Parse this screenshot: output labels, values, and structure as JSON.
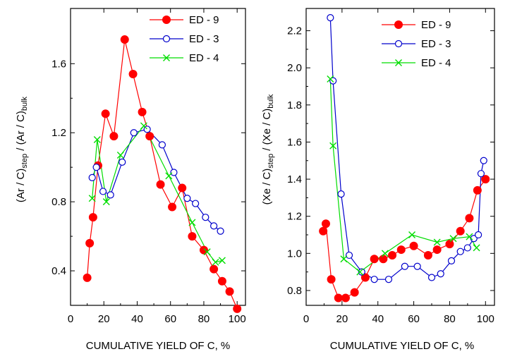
{
  "chart_data": [
    {
      "type": "line",
      "title": "",
      "xlabel": "CUMULATIVE YIELD OF C, %",
      "ylabel": "(Ar / C)",
      "ylabel_sub1": "step",
      "ylabel_mid": " / (Ar / C)",
      "ylabel_sub2": "bulk",
      "xlim": [
        0,
        105
      ],
      "ylim": [
        0.2,
        1.92
      ],
      "xticks": [
        0,
        20,
        40,
        60,
        80,
        100
      ],
      "yticks": [
        0.4,
        0.8,
        1.2,
        1.6
      ],
      "ytick_decimals": 1,
      "grid": false,
      "legend_position": "top-right",
      "series": [
        {
          "name": "ED - 9",
          "color": "#ff0000",
          "marker": "filled-circle",
          "x": [
            10,
            11.5,
            13.5,
            16.5,
            21,
            26,
            32.5,
            37.5,
            43,
            47.5,
            54,
            61,
            67,
            73,
            80,
            86,
            91,
            95.5,
            100
          ],
          "y": [
            0.36,
            0.56,
            0.71,
            1.01,
            1.31,
            1.18,
            1.74,
            1.54,
            1.32,
            1.18,
            0.9,
            0.77,
            0.88,
            0.6,
            0.52,
            0.41,
            0.34,
            0.28,
            0.18
          ]
        },
        {
          "name": "ED - 3",
          "color": "#0000cc",
          "marker": "open-circle",
          "x": [
            13,
            15.5,
            19.5,
            24,
            31,
            38,
            46,
            55,
            62,
            70,
            75,
            81,
            86,
            90
          ],
          "y": [
            0.94,
            1.0,
            0.86,
            0.84,
            1.03,
            1.2,
            1.22,
            1.13,
            0.97,
            0.82,
            0.79,
            0.71,
            0.66,
            0.63
          ]
        },
        {
          "name": "ED - 4",
          "color": "#00dd00",
          "marker": "x",
          "x": [
            13,
            16,
            21.5,
            30,
            44,
            59,
            73,
            82,
            87,
            91
          ],
          "y": [
            0.82,
            1.16,
            0.8,
            1.07,
            1.24,
            0.95,
            0.68,
            0.51,
            0.45,
            0.46
          ]
        }
      ]
    },
    {
      "type": "line",
      "title": "",
      "xlabel": "CUMULATIVE YIELD OF C, %",
      "ylabel": "(Xe / C)",
      "ylabel_sub1": "step",
      "ylabel_mid": " / (Xe / C)",
      "ylabel_sub2": "bulk",
      "xlim": [
        0,
        105
      ],
      "ylim": [
        0.72,
        2.32
      ],
      "xticks": [
        0,
        20,
        40,
        60,
        80,
        100
      ],
      "yticks": [
        0.8,
        1.0,
        1.2,
        1.4,
        1.6,
        1.8,
        2.0,
        2.2
      ],
      "ytick_decimals": 1,
      "grid": false,
      "legend_position": "top-right",
      "series": [
        {
          "name": "ED - 9",
          "color": "#ff0000",
          "marker": "filled-circle",
          "x": [
            9.5,
            11,
            14,
            18,
            22,
            27,
            33,
            38,
            43,
            48,
            53,
            60,
            68,
            73,
            80,
            86,
            91,
            95.5,
            100
          ],
          "y": [
            1.12,
            1.16,
            0.86,
            0.76,
            0.76,
            0.79,
            0.87,
            0.97,
            0.97,
            0.99,
            1.02,
            1.04,
            0.99,
            1.02,
            1.05,
            1.12,
            1.19,
            1.34,
            1.4
          ]
        },
        {
          "name": "ED - 3",
          "color": "#0000cc",
          "marker": "open-circle",
          "x": [
            13.5,
            15,
            19.5,
            24,
            31,
            38,
            46,
            55,
            62,
            70,
            75,
            81,
            86,
            90,
            93.5,
            96,
            97.5,
            99
          ],
          "y": [
            2.27,
            1.93,
            1.32,
            0.99,
            0.9,
            0.86,
            0.86,
            0.93,
            0.93,
            0.87,
            0.89,
            0.96,
            1.01,
            1.03,
            1.08,
            1.1,
            1.43,
            1.5
          ]
        },
        {
          "name": "ED - 4",
          "color": "#00dd00",
          "marker": "x",
          "x": [
            13.5,
            15,
            21,
            30,
            44,
            59,
            73,
            82,
            91,
            95
          ],
          "y": [
            1.94,
            1.58,
            0.97,
            0.9,
            1.0,
            1.1,
            1.06,
            1.08,
            1.09,
            1.03
          ]
        }
      ]
    }
  ]
}
